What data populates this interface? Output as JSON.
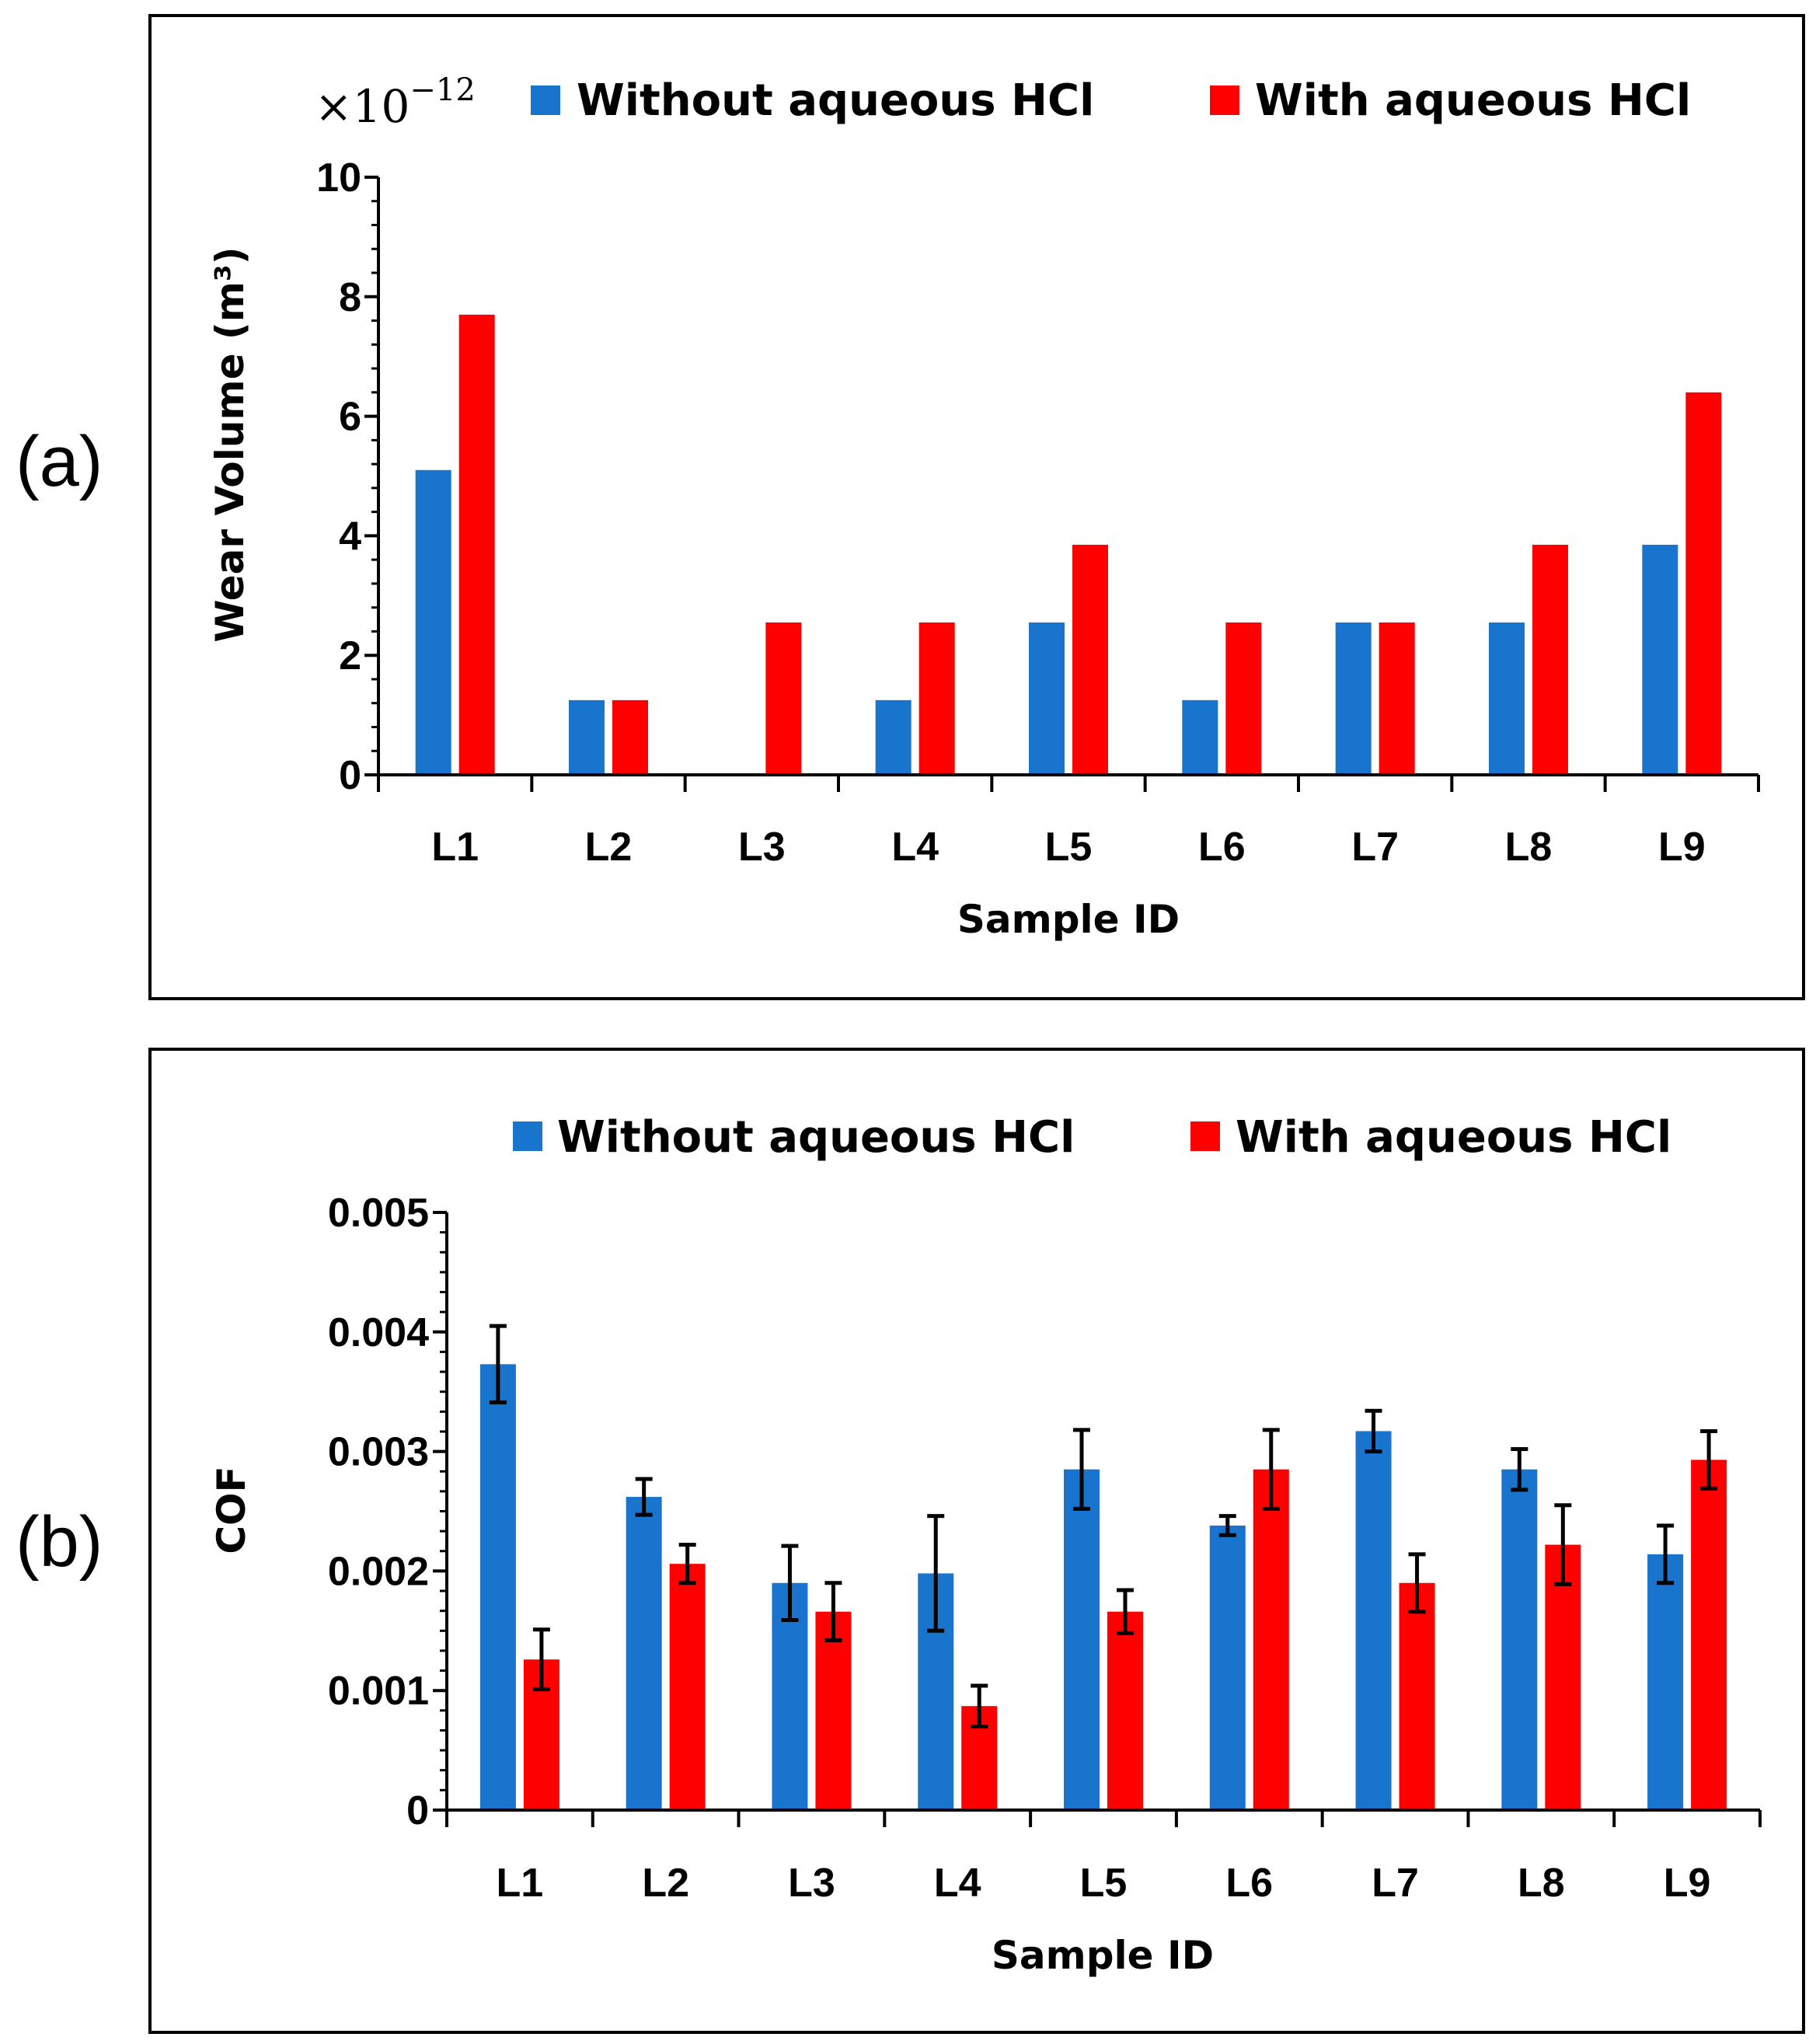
{
  "panel_labels": [
    "(a)",
    "(b)"
  ],
  "colors": {
    "without": "#1874CD",
    "with": "#FF0000",
    "errorbar": "#000000",
    "frame": "#000000"
  },
  "chart_data": [
    {
      "type": "bar",
      "categories": [
        "L1",
        "L2",
        "L3",
        "L4",
        "L5",
        "L6",
        "L7",
        "L8",
        "L9"
      ],
      "series": [
        {
          "name": "Without aqueous HCl",
          "values": [
            5.1,
            1.25,
            0,
            1.25,
            2.55,
            1.25,
            2.55,
            2.55,
            3.85
          ]
        },
        {
          "name": "With aqueous HCl",
          "values": [
            7.7,
            1.25,
            2.55,
            2.55,
            3.85,
            2.55,
            2.55,
            3.85,
            6.4
          ]
        }
      ],
      "xlabel": "Sample ID",
      "ylabel": "Wear Volume (m³)",
      "ylim": [
        0,
        10
      ],
      "yticks": [
        "0",
        "2",
        "4",
        "6",
        "8",
        "10"
      ],
      "ytick_values": [
        0,
        2,
        4,
        6,
        8,
        10
      ],
      "multiplier": {
        "base": "×10",
        "exponent": "−12"
      },
      "legend_position": "top"
    },
    {
      "type": "bar",
      "categories": [
        "L1",
        "L2",
        "L3",
        "L4",
        "L5",
        "L6",
        "L7",
        "L8",
        "L9"
      ],
      "series": [
        {
          "name": "Without aqueous HCl",
          "values": [
            0.00373,
            0.00262,
            0.0019,
            0.00198,
            0.00285,
            0.00238,
            0.00317,
            0.00285,
            0.00214
          ],
          "errors": [
            0.00032,
            0.00015,
            0.00031,
            0.00048,
            0.00033,
            8e-05,
            0.00017,
            0.00017,
            0.00024
          ]
        },
        {
          "name": "With aqueous HCl",
          "values": [
            0.00126,
            0.00206,
            0.00166,
            0.00087,
            0.00166,
            0.00285,
            0.0019,
            0.00222,
            0.00293
          ],
          "errors": [
            0.00025,
            0.00016,
            0.00024,
            0.00017,
            0.00018,
            0.00033,
            0.00024,
            0.00033,
            0.00024
          ]
        }
      ],
      "xlabel": "Sample ID",
      "ylabel": "COF",
      "ylim": [
        0,
        0.005
      ],
      "yticks": [
        "0",
        "0.001",
        "0.002",
        "0.003",
        "0.004",
        "0.005"
      ],
      "ytick_values": [
        0,
        0.001,
        0.002,
        0.003,
        0.004,
        0.005
      ],
      "legend_position": "top"
    }
  ]
}
